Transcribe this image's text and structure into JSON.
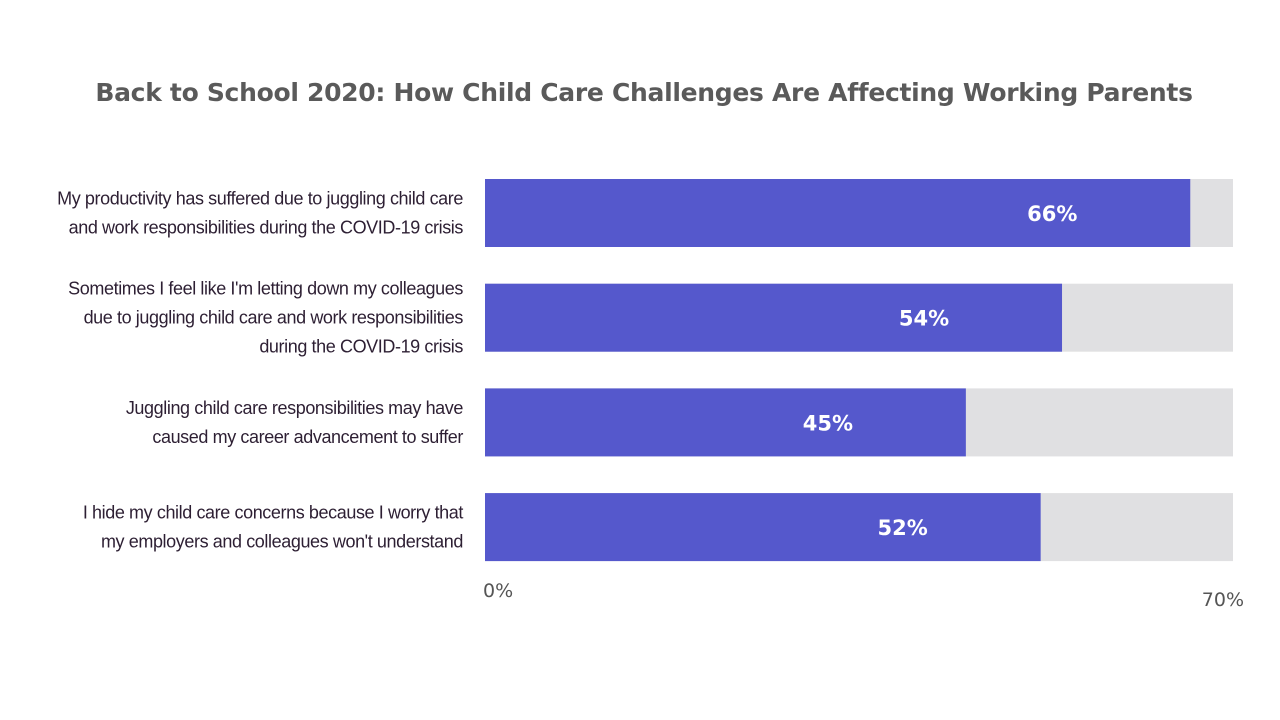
{
  "chart_data": {
    "type": "bar",
    "orientation": "horizontal",
    "title": "Back to School 2020: How Child Care Challenges Are Affecting Working Parents",
    "categories": [
      [
        "My productivity has suffered due to juggling child care",
        "and work responsibilities during the COVID-19 crisis"
      ],
      [
        "Sometimes I feel like I'm letting down my colleagues",
        "due to juggling child care and work responsibilities",
        "during the COVID-19 crisis"
      ],
      [
        "Juggling child care responsibilities may have",
        "caused my career advancement to suffer"
      ],
      [
        "I hide my child care concerns because I worry that",
        "my employers and colleagues won't understand"
      ]
    ],
    "values": [
      66,
      54,
      45,
      52
    ],
    "value_labels": [
      "66%",
      "54%",
      "45%",
      "52%"
    ],
    "xlim": [
      0,
      70
    ],
    "tick_labels": [
      "0%",
      "70%"
    ],
    "grid": false,
    "legend": "none",
    "colors": {
      "bar": "#5558cc",
      "track": "#e0e0e2",
      "label_text": "#2d1f33",
      "title": "#5a5a5a"
    }
  }
}
